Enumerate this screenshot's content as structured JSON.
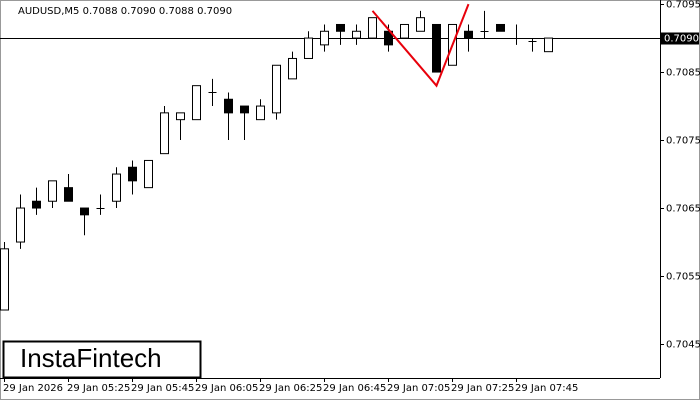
{
  "chart_data": {
    "type": "candlestick",
    "header": "AUDUSD,M5  0.7088 0.7090 0.7088 0.7090",
    "logo": "InstaFintech",
    "categories": [
      "29 Jan 2026",
      null,
      null,
      null,
      "29 Jan 05:25",
      null,
      null,
      null,
      "29 Jan 05:45",
      null,
      null,
      null,
      "29 Jan 06:05",
      null,
      null,
      null,
      "29 Jan 06:25",
      null,
      null,
      null,
      "29 Jan 06:45",
      null,
      null,
      null,
      "29 Jan 07:05",
      null,
      null,
      null,
      "29 Jan 07:25",
      null,
      null,
      null,
      "29 Jan 07:45",
      null,
      null
    ],
    "open": [
      0.705,
      0.706,
      0.7066,
      0.7066,
      0.7068,
      0.7065,
      0.7065,
      0.7066,
      0.7071,
      0.7068,
      0.7073,
      0.7078,
      0.7078,
      0.7082,
      0.7081,
      0.708,
      0.7078,
      0.7079,
      0.7084,
      0.7087,
      0.7089,
      0.7092,
      0.709,
      0.709,
      0.7091,
      0.709,
      0.7091,
      0.7092,
      0.7086,
      0.7091,
      0.7091,
      0.7092,
      0.709,
      0.70895,
      0.7088
    ],
    "high": [
      0.706,
      0.7067,
      0.7068,
      0.7069,
      0.707,
      0.7065,
      0.7067,
      0.7071,
      0.7072,
      0.7072,
      0.708,
      0.7079,
      0.7083,
      0.7084,
      0.7082,
      0.708,
      0.7081,
      0.7086,
      0.7088,
      0.7091,
      0.7092,
      0.7092,
      0.7092,
      0.7093,
      0.7092,
      0.7092,
      0.7094,
      0.7092,
      0.7092,
      0.7092,
      0.7094,
      0.7092,
      0.7092,
      0.709,
      0.709
    ],
    "low": [
      0.705,
      0.7059,
      0.7064,
      0.7065,
      0.7066,
      0.7061,
      0.7064,
      0.7065,
      0.7067,
      0.7068,
      0.7073,
      0.7075,
      0.7078,
      0.708,
      0.7075,
      0.7075,
      0.7078,
      0.7078,
      0.7084,
      0.7087,
      0.7088,
      0.7089,
      0.7089,
      0.709,
      0.7088,
      0.709,
      0.7091,
      0.7085,
      0.7086,
      0.7088,
      0.709,
      0.7091,
      0.7089,
      0.7088,
      0.7088
    ],
    "close": [
      0.7059,
      0.7065,
      0.7065,
      0.7069,
      0.7066,
      0.7064,
      0.7065,
      0.707,
      0.7069,
      0.7072,
      0.7079,
      0.7079,
      0.7083,
      0.7082,
      0.7079,
      0.7079,
      0.708,
      0.7086,
      0.7087,
      0.709,
      0.7091,
      0.7091,
      0.7091,
      0.7093,
      0.7089,
      0.7092,
      0.7093,
      0.7085,
      0.7092,
      0.709,
      0.7091,
      0.7091,
      0.709,
      0.70895,
      0.709
    ],
    "ylim": [
      0.704,
      0.70956
    ],
    "yticks": [
      0.7045,
      0.7055,
      0.7065,
      0.7075,
      0.7085,
      0.7095
    ],
    "current_price": {
      "value": 0.709,
      "label": "0.7090"
    },
    "pattern": {
      "color": "#e8000b",
      "at": [
        23,
        27,
        29
      ],
      "values": [
        0.7094,
        0.7083,
        0.7095
      ]
    }
  }
}
